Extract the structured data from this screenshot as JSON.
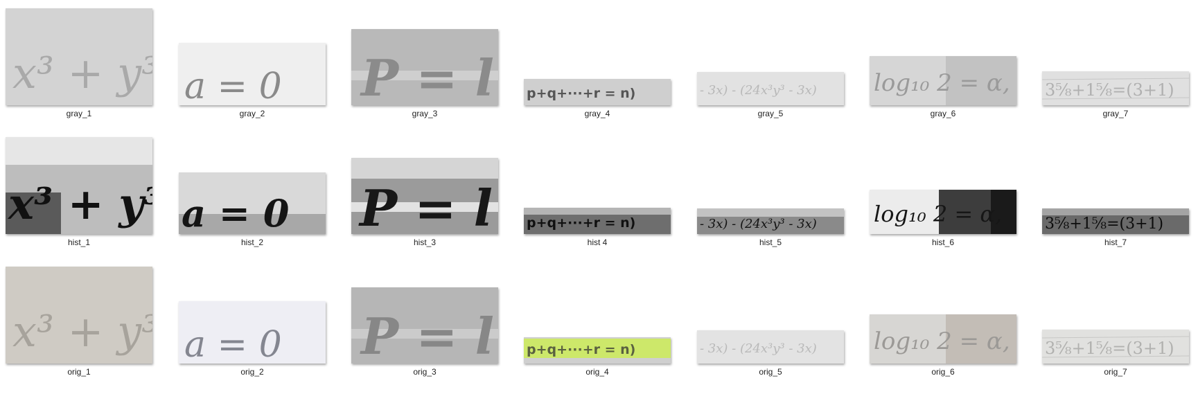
{
  "files": [
    {
      "name": "gray_1"
    },
    {
      "name": "gray_2"
    },
    {
      "name": "gray_3"
    },
    {
      "name": "gray_4"
    },
    {
      "name": "gray_5"
    },
    {
      "name": "gray_6"
    },
    {
      "name": "gray_7"
    },
    {
      "name": "hist_1"
    },
    {
      "name": "hist_2"
    },
    {
      "name": "hist_3"
    },
    {
      "name": "hist 4"
    },
    {
      "name": "hist_5"
    },
    {
      "name": "hist_6"
    },
    {
      "name": "hist_7"
    },
    {
      "name": "orig_1"
    },
    {
      "name": "orig_2"
    },
    {
      "name": "orig_3"
    },
    {
      "name": "orig_4"
    },
    {
      "name": "orig_5"
    },
    {
      "name": "orig_6"
    },
    {
      "name": "orig_7"
    }
  ],
  "thumbnail_text": {
    "t1": "x³ + y³",
    "t2": "a = 0",
    "t3": "P = l",
    "t4": "p+q+···+r = n)",
    "t5": "- 3x) - (24x³y³ - 3x)",
    "t6": "log₁₀ 2 = α,",
    "t7": "3⅝+1⅝=(3+1)"
  },
  "colors": {
    "gray_bg": "#d2d2d2",
    "orig_1_bg": "#cfcbc4",
    "orig_2_bg": "#eeeef4",
    "orig_4_highlight": "#cde86a",
    "hist_dark": "#1a1a1a"
  }
}
